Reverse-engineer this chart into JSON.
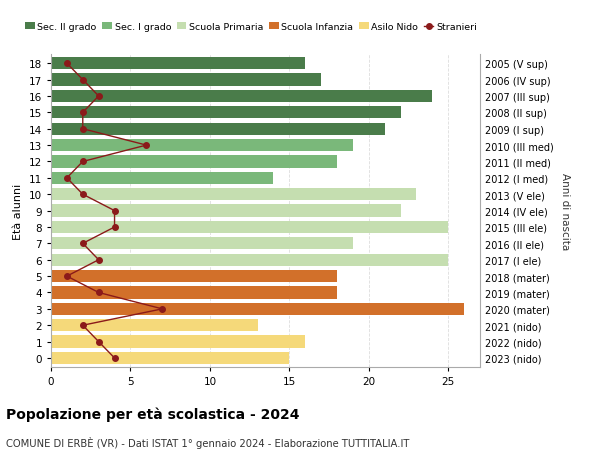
{
  "ages": [
    18,
    17,
    16,
    15,
    14,
    13,
    12,
    11,
    10,
    9,
    8,
    7,
    6,
    5,
    4,
    3,
    2,
    1,
    0
  ],
  "years": [
    "2005 (V sup)",
    "2006 (IV sup)",
    "2007 (III sup)",
    "2008 (II sup)",
    "2009 (I sup)",
    "2010 (III med)",
    "2011 (II med)",
    "2012 (I med)",
    "2013 (V ele)",
    "2014 (IV ele)",
    "2015 (III ele)",
    "2016 (II ele)",
    "2017 (I ele)",
    "2018 (mater)",
    "2019 (mater)",
    "2020 (mater)",
    "2021 (nido)",
    "2022 (nido)",
    "2023 (nido)"
  ],
  "bar_values": [
    16,
    17,
    24,
    22,
    21,
    19,
    18,
    14,
    23,
    22,
    25,
    19,
    25,
    18,
    18,
    26,
    13,
    16,
    15
  ],
  "stranieri": [
    1,
    2,
    3,
    2,
    2,
    6,
    2,
    1,
    2,
    4,
    4,
    2,
    3,
    1,
    3,
    7,
    2,
    3,
    4
  ],
  "bar_colors": [
    "#4a7c4a",
    "#4a7c4a",
    "#4a7c4a",
    "#4a7c4a",
    "#4a7c4a",
    "#7ab87a",
    "#7ab87a",
    "#7ab87a",
    "#c5deb0",
    "#c5deb0",
    "#c5deb0",
    "#c5deb0",
    "#c5deb0",
    "#d2702a",
    "#d2702a",
    "#d2702a",
    "#f5d97a",
    "#f5d97a",
    "#f5d97a"
  ],
  "legend_labels": [
    "Sec. II grado",
    "Sec. I grado",
    "Scuola Primaria",
    "Scuola Infanzia",
    "Asilo Nido",
    "Stranieri"
  ],
  "legend_colors": [
    "#4a7c4a",
    "#7ab87a",
    "#c5deb0",
    "#d2702a",
    "#f5d97a",
    "#8b1a1a"
  ],
  "stranieri_color": "#8b1a1a",
  "ylabel_left": "Età alunni",
  "ylabel_right": "Anni di nascita",
  "title": "Popolazione per età scolastica - 2024",
  "subtitle": "COMUNE DI ERBÈ (VR) - Dati ISTAT 1° gennaio 2024 - Elaborazione TUTTITALIA.IT",
  "xticks": [
    0,
    5,
    10,
    15,
    20,
    25
  ],
  "xlim": [
    0,
    27
  ],
  "background_color": "#ffffff",
  "grid_color": "#dddddd",
  "bar_height": 0.75
}
